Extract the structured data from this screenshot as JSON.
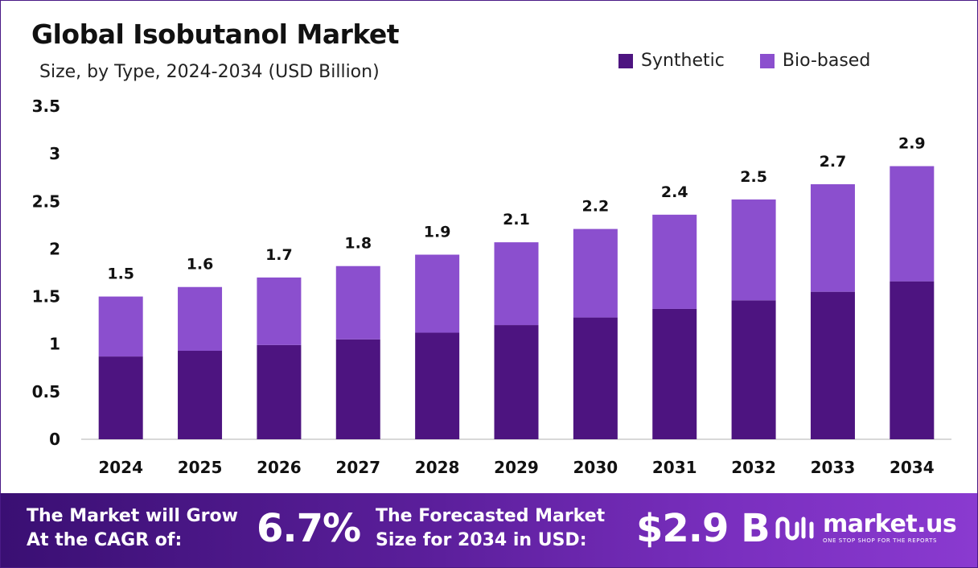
{
  "colors": {
    "synthetic": "#4d1480",
    "bio_based": "#8b4fce",
    "text": "#111111",
    "axis": "#cccccc"
  },
  "chart_data": {
    "type": "bar",
    "stacked": true,
    "title": "Global Isobutanol Market",
    "subtitle": "Size, by Type, 2024-2034 (USD Billion)",
    "categories": [
      "2024",
      "2025",
      "2026",
      "2027",
      "2028",
      "2029",
      "2030",
      "2031",
      "2032",
      "2033",
      "2034"
    ],
    "series": [
      {
        "name": "Synthetic",
        "values": [
          0.87,
          0.93,
          0.99,
          1.05,
          1.12,
          1.2,
          1.28,
          1.37,
          1.46,
          1.55,
          1.66
        ]
      },
      {
        "name": "Bio-based",
        "values": [
          0.63,
          0.67,
          0.71,
          0.77,
          0.82,
          0.87,
          0.93,
          0.99,
          1.06,
          1.13,
          1.21
        ]
      }
    ],
    "totals_labels": [
      "1.5",
      "1.6",
      "1.7",
      "1.8",
      "1.9",
      "2.1",
      "2.2",
      "2.4",
      "2.5",
      "2.7",
      "2.9"
    ],
    "ylim": [
      0,
      3.5
    ],
    "yticks": [
      "0",
      "0.5",
      "1",
      "1.5",
      "2",
      "2.5",
      "3",
      "3.5"
    ],
    "ytick_values": [
      0,
      0.5,
      1,
      1.5,
      2,
      2.5,
      3,
      3.5
    ],
    "grid": false,
    "legend_position": "top-right"
  },
  "footer": {
    "cagr_text": "The Market will Grow\nAt the CAGR of:",
    "cagr_value": "6.7%",
    "forecast_text": "The Forecasted Market\nSize for 2034 in USD:",
    "forecast_value": "$2.9 B",
    "brand_name": "market.us",
    "brand_tagline": "ONE STOP SHOP FOR THE REPORTS"
  }
}
